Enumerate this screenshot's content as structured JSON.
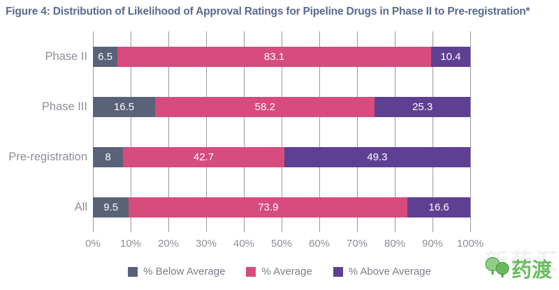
{
  "title": "Figure 4: Distribution of Likelihood of Approval Ratings for Pipeline Drugs in Phase II to Pre-registration*",
  "chart_data": {
    "type": "bar",
    "orientation": "horizontal",
    "stacked": true,
    "title": "Figure 4: Distribution of Likelihood of Approval Ratings for Pipeline Drugs in Phase II to Pre-registration*",
    "categories": [
      "Phase II",
      "Phase III",
      "Pre-registration",
      "All"
    ],
    "series": [
      {
        "name": "% Below Average",
        "color": "#5a6278",
        "values": [
          6.5,
          16.5,
          8,
          9.5
        ]
      },
      {
        "name": "% Average",
        "color": "#d74b7f",
        "values": [
          83.1,
          58.2,
          42.7,
          73.9
        ]
      },
      {
        "name": "% Above Average",
        "color": "#5e4092",
        "values": [
          10.4,
          25.3,
          49.3,
          16.6
        ]
      }
    ],
    "xlim": [
      0,
      100
    ],
    "x_tick_labels": [
      "0%",
      "10%",
      "20%",
      "30%",
      "40%",
      "50%",
      "60%",
      "70%",
      "80%",
      "90%",
      "100%"
    ],
    "grid": true,
    "legend_position": "bottom",
    "value_labels": "inside, white"
  },
  "watermark": {
    "brand_text": "药渡",
    "background_text": "新药汇",
    "brand_color": "#69bd5f"
  }
}
